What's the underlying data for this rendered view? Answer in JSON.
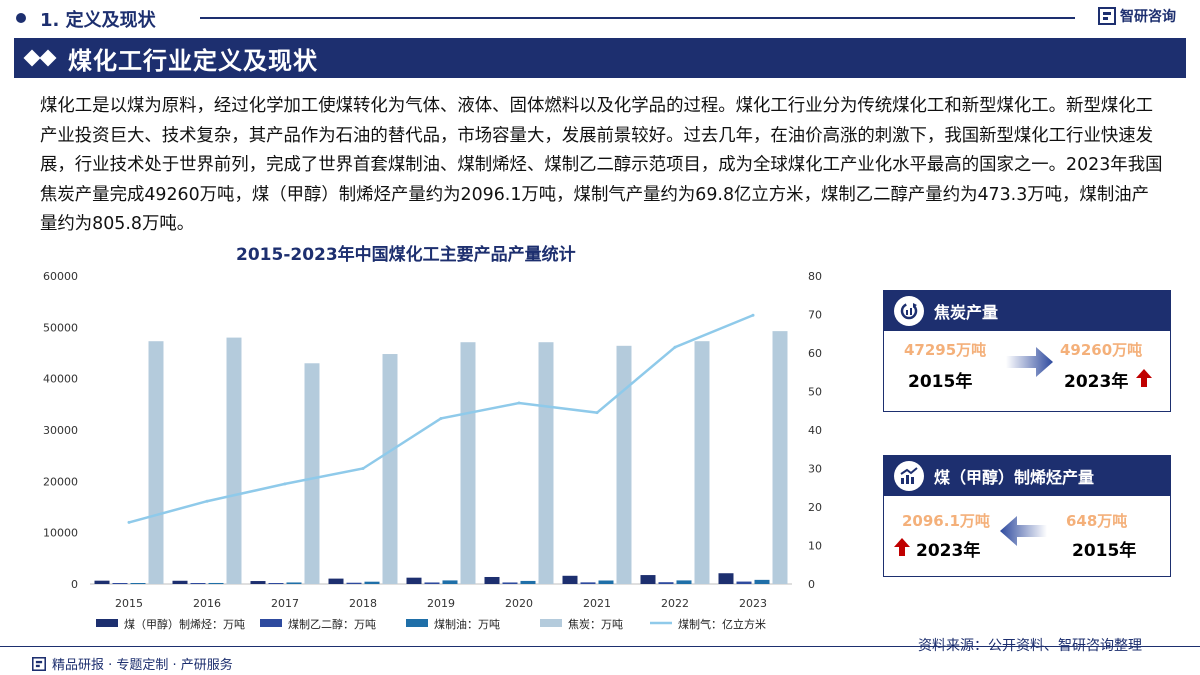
{
  "header": {
    "section": "1. 定义及现状",
    "brand": "智研咨询"
  },
  "banner": {
    "title": "煤化工行业定义及现状"
  },
  "intro": "煤化工是以煤为原料，经过化学加工使煤转化为气体、液体、固体燃料以及化学品的过程。煤化工行业分为传统煤化工和新型煤化工。新型煤化工产业投资巨大、技术复杂，其产品作为石油的替代品，市场容量大，发展前景较好。过去几年，在油价高涨的刺激下，我国新型煤化工行业快速发展，行业技术处于世界前列，完成了世界首套煤制油、煤制烯烃、煤制乙二醇示范项目，成为全球煤化工产业化水平最高的国家之一。2023年我国焦炭产量完成49260万吨，煤（甲醇）制烯烃产量约为2096.1万吨，煤制气产量约为69.8亿立方米，煤制乙二醇产量约为473.3万吨，煤制油产量约为805.8万吨。",
  "chart_data": {
    "type": "bar",
    "title": "2015-2023年中国煤化工主要产品产量统计",
    "categories": [
      "2015",
      "2016",
      "2017",
      "2018",
      "2019",
      "2020",
      "2021",
      "2022",
      "2023"
    ],
    "ylim_left": [
      0,
      60000
    ],
    "yticks_left": [
      "0",
      "10000",
      "20000",
      "30000",
      "40000",
      "50000",
      "60000"
    ],
    "ylim_right": [
      0,
      80
    ],
    "yticks_right": [
      "0",
      "10",
      "20",
      "30",
      "40",
      "50",
      "60",
      "70",
      "80"
    ],
    "series": [
      {
        "name": "煤（甲醇）制烯烃：万吨",
        "type": "bar",
        "axis": "left",
        "color": "#1d2f6f",
        "values": [
          648,
          631,
          577,
          1051,
          1232,
          1366,
          1600,
          1740,
          2096.1
        ]
      },
      {
        "name": "煤制乙二醇：万吨",
        "type": "bar",
        "axis": "left",
        "color": "#2e4a9e",
        "values": [
          100,
          120,
          150,
          250,
          300,
          300,
          320,
          350,
          473.3
        ]
      },
      {
        "name": "煤制油：万吨",
        "type": "bar",
        "axis": "left",
        "color": "#1f6fa8",
        "values": [
          150,
          200,
          300,
          450,
          700,
          600,
          680,
          700,
          805.8
        ]
      },
      {
        "name": "焦炭：万吨",
        "type": "bar",
        "axis": "left",
        "color": "#b4cbdc",
        "values": [
          47295,
          48000,
          43000,
          44800,
          47100,
          47100,
          46400,
          47300,
          49260
        ]
      },
      {
        "name": "煤制气：亿立方米",
        "type": "line",
        "axis": "right",
        "color": "#8fcaea",
        "values": [
          16,
          21.5,
          26,
          30,
          43,
          47,
          44.5,
          61.5,
          69.8
        ]
      }
    ]
  },
  "cards": {
    "coke": {
      "title": "焦炭产量",
      "from_value": "47295万吨",
      "from_year": "2015年",
      "to_value": "49260万吨",
      "to_year": "2023年"
    },
    "olefin": {
      "title": "煤（甲醇）制烯烃产量",
      "to_value": "2096.1万吨",
      "to_year": "2023年",
      "from_value": "648万吨",
      "from_year": "2015年"
    }
  },
  "footer": {
    "slogan": "精品研报 · 专题定制 · 产研服务",
    "source": "资料来源：公开资料、智研咨询整理"
  },
  "colors": {
    "navy": "#1d2f6f",
    "accent_orange": "#f4b07a",
    "up_red": "#c00000"
  }
}
